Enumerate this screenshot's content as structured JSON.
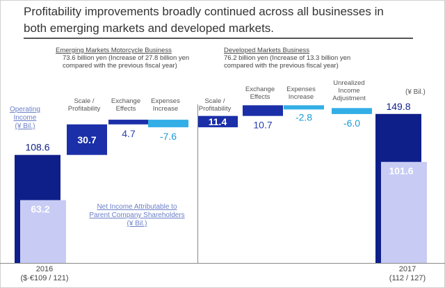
{
  "title": {
    "line1": "Profitability improvements broadly continued across all businesses in",
    "line2": "both emerging markets and developed markets."
  },
  "emerging": {
    "heading": "Emerging Markets Motorcycle Business",
    "line1": "73.6 billion yen (Increase of 27.8 billion yen",
    "line2": "compared with the previous fiscal year)"
  },
  "developed": {
    "heading": "Developed  Markets Business",
    "line1": "76.2 billion yen (Increase of 13.3 billion yen",
    "line2": "compared with the previous  fiscal year)"
  },
  "unit_label": "(¥ Bil.)",
  "operating_income_label": {
    "line1": "Operating Income",
    "line2": "(¥ Bil.)"
  },
  "net_income_label": {
    "line1": "Net Income Attributable to",
    "line2": "Parent Company Shareholders",
    "line3": "(¥ Bil.)"
  },
  "years": {
    "start": {
      "year": "2016",
      "rate": "($·€109 / 121)"
    },
    "end": {
      "year": "2017",
      "rate": "(112 / 127)"
    }
  },
  "colors": {
    "dark_navy": "#0f1f8a",
    "navy": "#1a2fa8",
    "light_blue": "#33aee6",
    "lavender": "#c8ccf4",
    "value_blue": "#2a3fb0",
    "value_cyan": "#1a9ad6"
  },
  "chart_data": {
    "type": "waterfall",
    "unit": "¥ Bil.",
    "bars": [
      {
        "label": "2016",
        "kind": "total",
        "operating_income": 108.6,
        "net_income": 63.2,
        "op_text": "108.6",
        "ni_text": "63.2"
      },
      {
        "label": "Scale / Profitability",
        "label1": "Scale /",
        "label2": "Profitability",
        "segment": "Emerging",
        "kind": "delta",
        "value": 30.7,
        "text": "30.7",
        "style": "navy",
        "text_inside": true
      },
      {
        "label": "Exchange Effects",
        "label1": "Exchange",
        "label2": "Effects",
        "segment": "Emerging",
        "kind": "delta",
        "value": 4.7,
        "text": "4.7",
        "style": "navy",
        "text_inside": false
      },
      {
        "label": "Expenses Increase",
        "label1": "Expenses",
        "label2": "Increase",
        "segment": "Emerging",
        "kind": "delta",
        "value": -7.6,
        "text": "-7.6",
        "style": "light",
        "text_inside": false
      },
      {
        "label": "Scale / Profitability",
        "label1": "Scale /",
        "label2": "Profitability",
        "segment": "Developed",
        "kind": "delta",
        "value": 11.4,
        "text": "11.4",
        "style": "navy",
        "text_inside": true
      },
      {
        "label": "Exchange Effects",
        "label1": "Exchange",
        "label2": "Effects",
        "segment": "Developed",
        "kind": "delta",
        "value": 10.7,
        "text": "10.7",
        "style": "navy",
        "text_inside": false
      },
      {
        "label": "Expenses Increase",
        "label1": "Expenses",
        "label2": "Increase",
        "segment": "Developed",
        "kind": "delta",
        "value": -2.8,
        "text": "-2.8",
        "style": "light",
        "text_inside": false
      },
      {
        "label": "Unrealized Income Adjustment",
        "label1": "Unrealized",
        "label2": "Income",
        "label3": "Adjustment",
        "segment": "Developed",
        "kind": "delta",
        "value": -6.0,
        "text": "-6.0",
        "style": "light",
        "text_inside": false
      },
      {
        "label": "2017",
        "kind": "total",
        "operating_income": 149.8,
        "net_income": 101.6,
        "op_text": "149.8",
        "ni_text": "101.6"
      }
    ],
    "grid": false,
    "legend": "none"
  }
}
